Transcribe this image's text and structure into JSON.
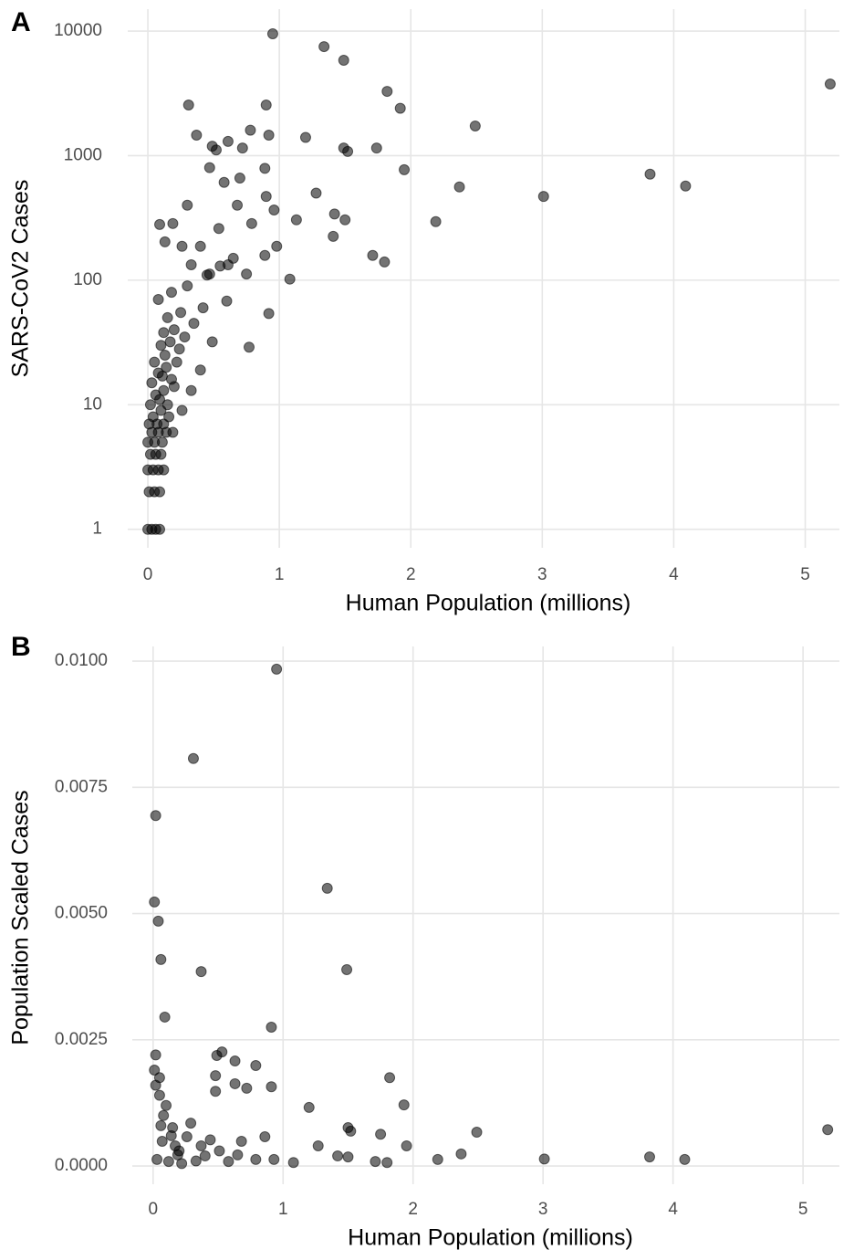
{
  "chart_data": [
    {
      "type": "scatter",
      "panel_label": "A",
      "xlabel": "Human Population (millions)",
      "ylabel": "SARS-CoV2 Cases",
      "log_y": true,
      "grid": true,
      "color": "#000000",
      "opacity": 0.55,
      "xlim": [
        -0.153,
        5.26
      ],
      "ylim": [
        0.71,
        15000
      ],
      "xticks": [
        0,
        1,
        2,
        3,
        4,
        5
      ],
      "yticks": [
        1,
        10,
        100,
        1000,
        10000
      ],
      "x": [
        0.95,
        1.34,
        1.49,
        5.19,
        1.82,
        1.92,
        0.31,
        0.9,
        2.49,
        0.37,
        0.92,
        1.2,
        1.49,
        1.52,
        1.74,
        1.95,
        3.82,
        4.09,
        2.37,
        3.01,
        2.19,
        1.28,
        1.42,
        1.5,
        1.13,
        1.41,
        1.71,
        1.8,
        1.08,
        0.92,
        0.77,
        0.49,
        0.52,
        0.72,
        0.61,
        0.78,
        0.47,
        0.58,
        0.7,
        0.89,
        0.9,
        0.96,
        0.79,
        0.68,
        0.54,
        0.4,
        0.3,
        0.19,
        0.09,
        0.13,
        0.26,
        0.33,
        0.47,
        0.61,
        0.75,
        0.89,
        0.98,
        0.6,
        0.49,
        0.4,
        0.33,
        0.26,
        0.19,
        0.0,
        0.03,
        0.06,
        0.09,
        0.01,
        0.05,
        0.09,
        0.0,
        0.04,
        0.08,
        0.12,
        0.02,
        0.06,
        0.1,
        0.0,
        0.05,
        0.11,
        0.03,
        0.08,
        0.14,
        0.01,
        0.07,
        0.12,
        0.04,
        0.1,
        0.16,
        0.02,
        0.09,
        0.15,
        0.06,
        0.12,
        0.2,
        0.03,
        0.11,
        0.18,
        0.08,
        0.14,
        0.22,
        0.05,
        0.13,
        0.24,
        0.1,
        0.17,
        0.28,
        0.12,
        0.2,
        0.35,
        0.15,
        0.25,
        0.42,
        0.08,
        0.18,
        0.3,
        0.45,
        0.55,
        0.65
      ],
      "values": [
        9500,
        7500,
        5830,
        3760,
        3280,
        2400,
        2550,
        2550,
        1730,
        1460,
        1460,
        1400,
        1150,
        1080,
        1150,
        770,
        710,
        570,
        560,
        470,
        295,
        500,
        340,
        305,
        305,
        225,
        158,
        140,
        102,
        54,
        29,
        1190,
        1110,
        1150,
        1300,
        1600,
        800,
        610,
        660,
        790,
        470,
        366,
        285,
        400,
        260,
        187,
        400,
        285,
        280,
        203,
        187,
        133,
        112,
        133,
        112,
        158,
        187,
        68,
        32,
        19,
        13,
        9,
        6,
        1,
        1,
        1,
        1,
        2,
        2,
        2,
        3,
        3,
        3,
        3,
        4,
        4,
        4,
        5,
        5,
        5,
        6,
        6,
        6,
        7,
        7,
        7,
        8,
        9,
        8,
        10,
        11,
        10,
        12,
        13,
        14,
        15,
        17,
        16,
        18,
        20,
        22,
        22,
        25,
        28,
        30,
        32,
        35,
        38,
        40,
        45,
        50,
        55,
        60,
        70,
        80,
        90,
        110,
        130,
        150
      ]
    },
    {
      "type": "scatter",
      "panel_label": "B",
      "xlabel": "Human Population (millions)",
      "ylabel": "Population Scaled Cases",
      "log_y": false,
      "grid": true,
      "color": "#000000",
      "opacity": 0.55,
      "xlim": [
        -0.16,
        5.28
      ],
      "ylim": [
        -0.00036,
        0.01029
      ],
      "xticks": [
        0,
        1,
        2,
        3,
        4,
        5
      ],
      "yticks": [
        {
          "value": 0,
          "label": "0.0000"
        },
        {
          "value": 0.0025,
          "label": "0.0025"
        },
        {
          "value": 0.005,
          "label": "0.0050"
        },
        {
          "value": 0.0075,
          "label": "0.0075"
        },
        {
          "value": 0.01,
          "label": "0.0100"
        }
      ],
      "x": [
        0.95,
        0.31,
        0.02,
        0.01,
        0.04,
        0.06,
        1.34,
        0.37,
        1.49,
        0.09,
        0.91,
        0.53,
        0.49,
        0.63,
        0.79,
        0.02,
        0.48,
        1.82,
        0.63,
        0.72,
        0.48,
        0.91,
        1.93,
        1.2,
        5.19,
        2.49,
        1.5,
        1.52,
        1.75,
        1.95,
        1.27,
        2.37,
        2.19,
        3.01,
        3.82,
        4.09,
        1.8,
        1.71,
        1.42,
        1.5,
        1.08,
        0.93,
        0.05,
        0.08,
        0.15,
        0.26,
        0.37,
        0.51,
        0.65,
        0.29,
        0.44,
        0.19,
        0.03,
        0.12,
        0.22,
        0.58,
        0.79,
        0.68,
        0.86,
        0.05,
        0.07,
        0.01,
        0.1,
        0.14,
        0.2,
        0.33,
        0.4,
        0.02,
        0.06,
        0.17
      ],
      "values": [
        0.00984,
        0.00807,
        0.00694,
        0.00523,
        0.00485,
        0.00409,
        0.0055,
        0.00385,
        0.00389,
        0.00295,
        0.00275,
        0.00226,
        0.00219,
        0.00208,
        0.00199,
        0.0022,
        0.00179,
        0.00175,
        0.00163,
        0.00154,
        0.00148,
        0.00157,
        0.00121,
        0.00116,
        0.00072,
        0.00067,
        0.00076,
        0.00069,
        0.00063,
        0.0004,
        0.0004,
        0.00024,
        0.00013,
        0.00014,
        0.00018,
        0.00013,
        7e-05,
        9e-05,
        0.0002,
        0.00018,
        7e-05,
        0.00013,
        0.0014,
        0.001,
        0.00076,
        0.00058,
        0.0004,
        0.0003,
        0.00022,
        0.00085,
        0.00052,
        0.00022,
        0.00013,
        9e-05,
        5e-05,
        9e-05,
        0.00013,
        0.00049,
        0.00058,
        0.00175,
        0.00049,
        0.0019,
        0.0012,
        0.0006,
        0.0003,
        0.0001,
        0.0002,
        0.0016,
        0.0008,
        0.0004
      ]
    }
  ]
}
